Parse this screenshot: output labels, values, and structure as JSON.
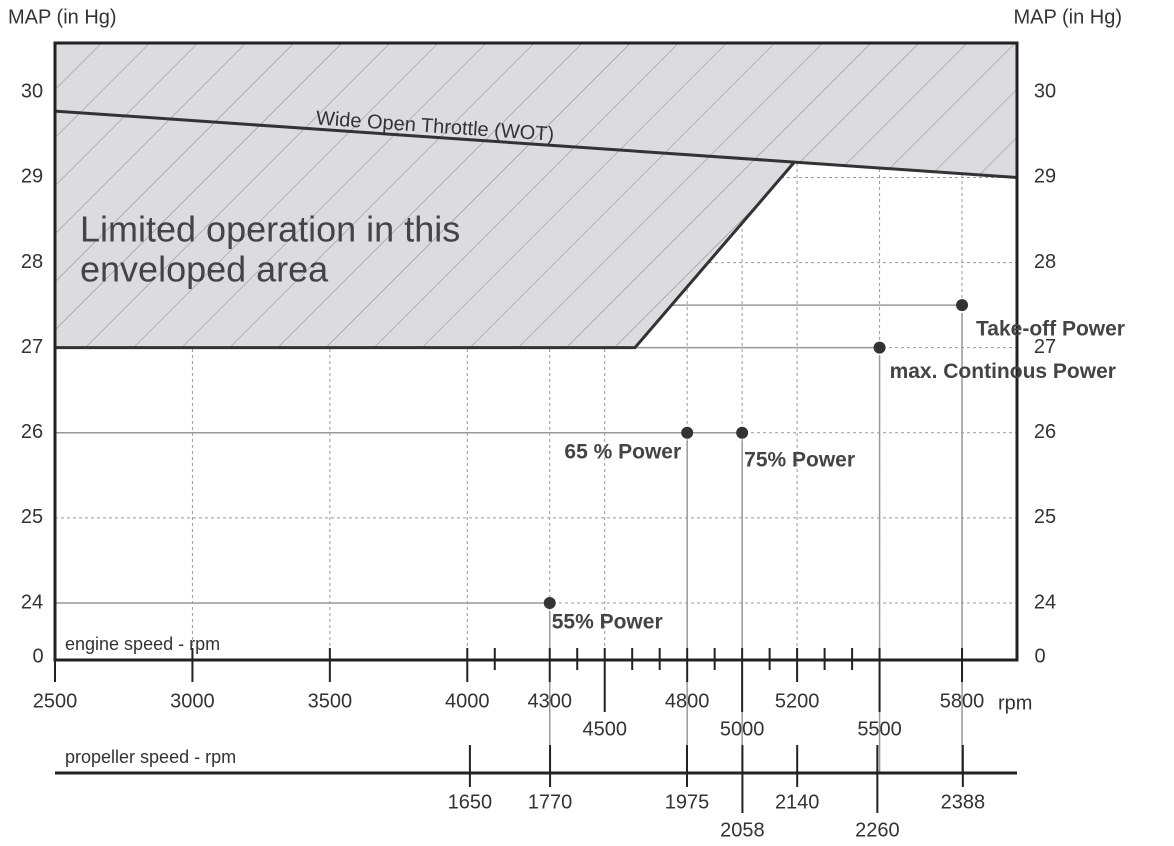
{
  "chart_data": {
    "type": "scatter",
    "y_axis_label": "MAP (in Hg)",
    "y2_axis_label": "MAP (in Hg)",
    "y_break_label": "0",
    "x_axis_label": "engine speed - rpm",
    "x_unit": "rpm",
    "x2_axis_label": "propeller speed - rpm",
    "xlim": [
      2500,
      6000
    ],
    "xticks": [
      2500,
      3000,
      3500,
      4000,
      4300,
      4500,
      4800,
      5000,
      5200,
      5500,
      5800
    ],
    "xminor_ticks": [
      4100,
      4400,
      4600,
      4700,
      4900,
      5100,
      5300,
      5400
    ],
    "x2lim": [
      1028.8,
      2469.1
    ],
    "x2ticks": [
      1650,
      1770,
      1975,
      2058,
      2140,
      2260,
      2388
    ],
    "ylim": [
      23.33,
      30.58
    ],
    "yticks": [
      24,
      25,
      26,
      27,
      28,
      29,
      30
    ],
    "grid": true,
    "wot": {
      "label": "Wide Open Throttle (WOT)",
      "x": [
        2500,
        6000
      ],
      "values": [
        29.78,
        29
      ],
      "color": "#333333"
    },
    "envelope": {
      "label": [
        "Limited operation in this",
        "enveloped area"
      ],
      "x": [
        2500,
        5190,
        4610,
        2500
      ],
      "values": [
        29.78,
        29.18,
        27,
        27
      ],
      "color": "#dcdce0"
    },
    "points": {
      "labels": [
        "55% Power",
        "65 % Power",
        "75% Power",
        "max. Continous Power",
        "Take-off Power"
      ],
      "x": [
        4300,
        4800,
        5000,
        5500,
        5800
      ],
      "values": [
        24,
        26,
        26,
        27,
        27.5
      ],
      "color": "#333333"
    }
  }
}
